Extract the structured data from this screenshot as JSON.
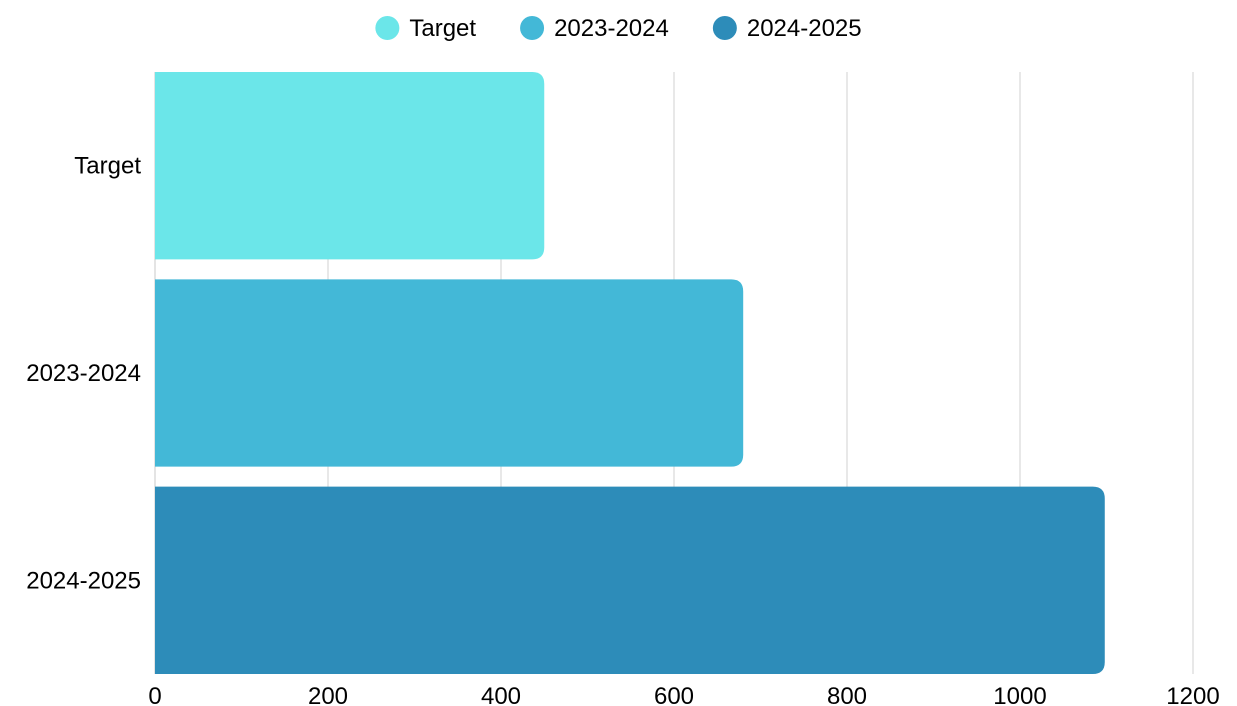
{
  "chart_data": {
    "type": "bar",
    "orientation": "horizontal",
    "title": "",
    "xlabel": "",
    "ylabel": "",
    "categories": [
      "Target",
      "2023-2024",
      "2024-2025"
    ],
    "values": [
      450,
      680,
      1098
    ],
    "colors": [
      "#6be6e9",
      "#43b8d7",
      "#2d8cb9"
    ],
    "xlim": [
      0,
      1200
    ],
    "x_ticks": [
      "0",
      "200",
      "400",
      "600",
      "800",
      "1000",
      "1200"
    ],
    "grid": "vertical",
    "legend": {
      "position": "top-center",
      "entries": [
        {
          "label": "Target",
          "color": "#6be6e9"
        },
        {
          "label": "2023-2024",
          "color": "#43b8d7"
        },
        {
          "label": "2024-2025",
          "color": "#2d8cb9"
        }
      ]
    }
  }
}
